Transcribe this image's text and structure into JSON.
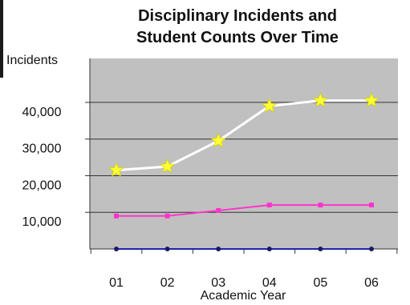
{
  "chart_data": {
    "type": "line",
    "title_lines": [
      "Disciplinary Incidents and",
      "Student Counts Over Time"
    ],
    "ylabel": "Incidents",
    "xlabel": "Academic Year",
    "categories": [
      "01",
      "02",
      "03",
      "04",
      "05",
      "06"
    ],
    "yticks": [
      {
        "value": 10000,
        "label": "10,000"
      },
      {
        "value": 20000,
        "label": "20,000"
      },
      {
        "value": 30000,
        "label": "30,000"
      },
      {
        "value": 40000,
        "label": "40,000"
      }
    ],
    "ylim": [
      0,
      52000
    ],
    "grid": true,
    "plot_background": "#c0c0c0",
    "series": [
      {
        "values": [
          21500,
          22500,
          29500,
          39000,
          40500,
          40500
        ],
        "color": "#ffffff",
        "marker": "star",
        "marker_color": "#ffff33"
      },
      {
        "values": [
          9000,
          9000,
          10500,
          12000,
          12000,
          12000
        ],
        "color": "#ff33cc",
        "marker": "square",
        "marker_color": "#ff33cc"
      },
      {
        "values": [
          0,
          0,
          0,
          0,
          0,
          0
        ],
        "color": "#2222aa",
        "marker": "dot",
        "marker_color": "#1a1a66"
      }
    ]
  }
}
